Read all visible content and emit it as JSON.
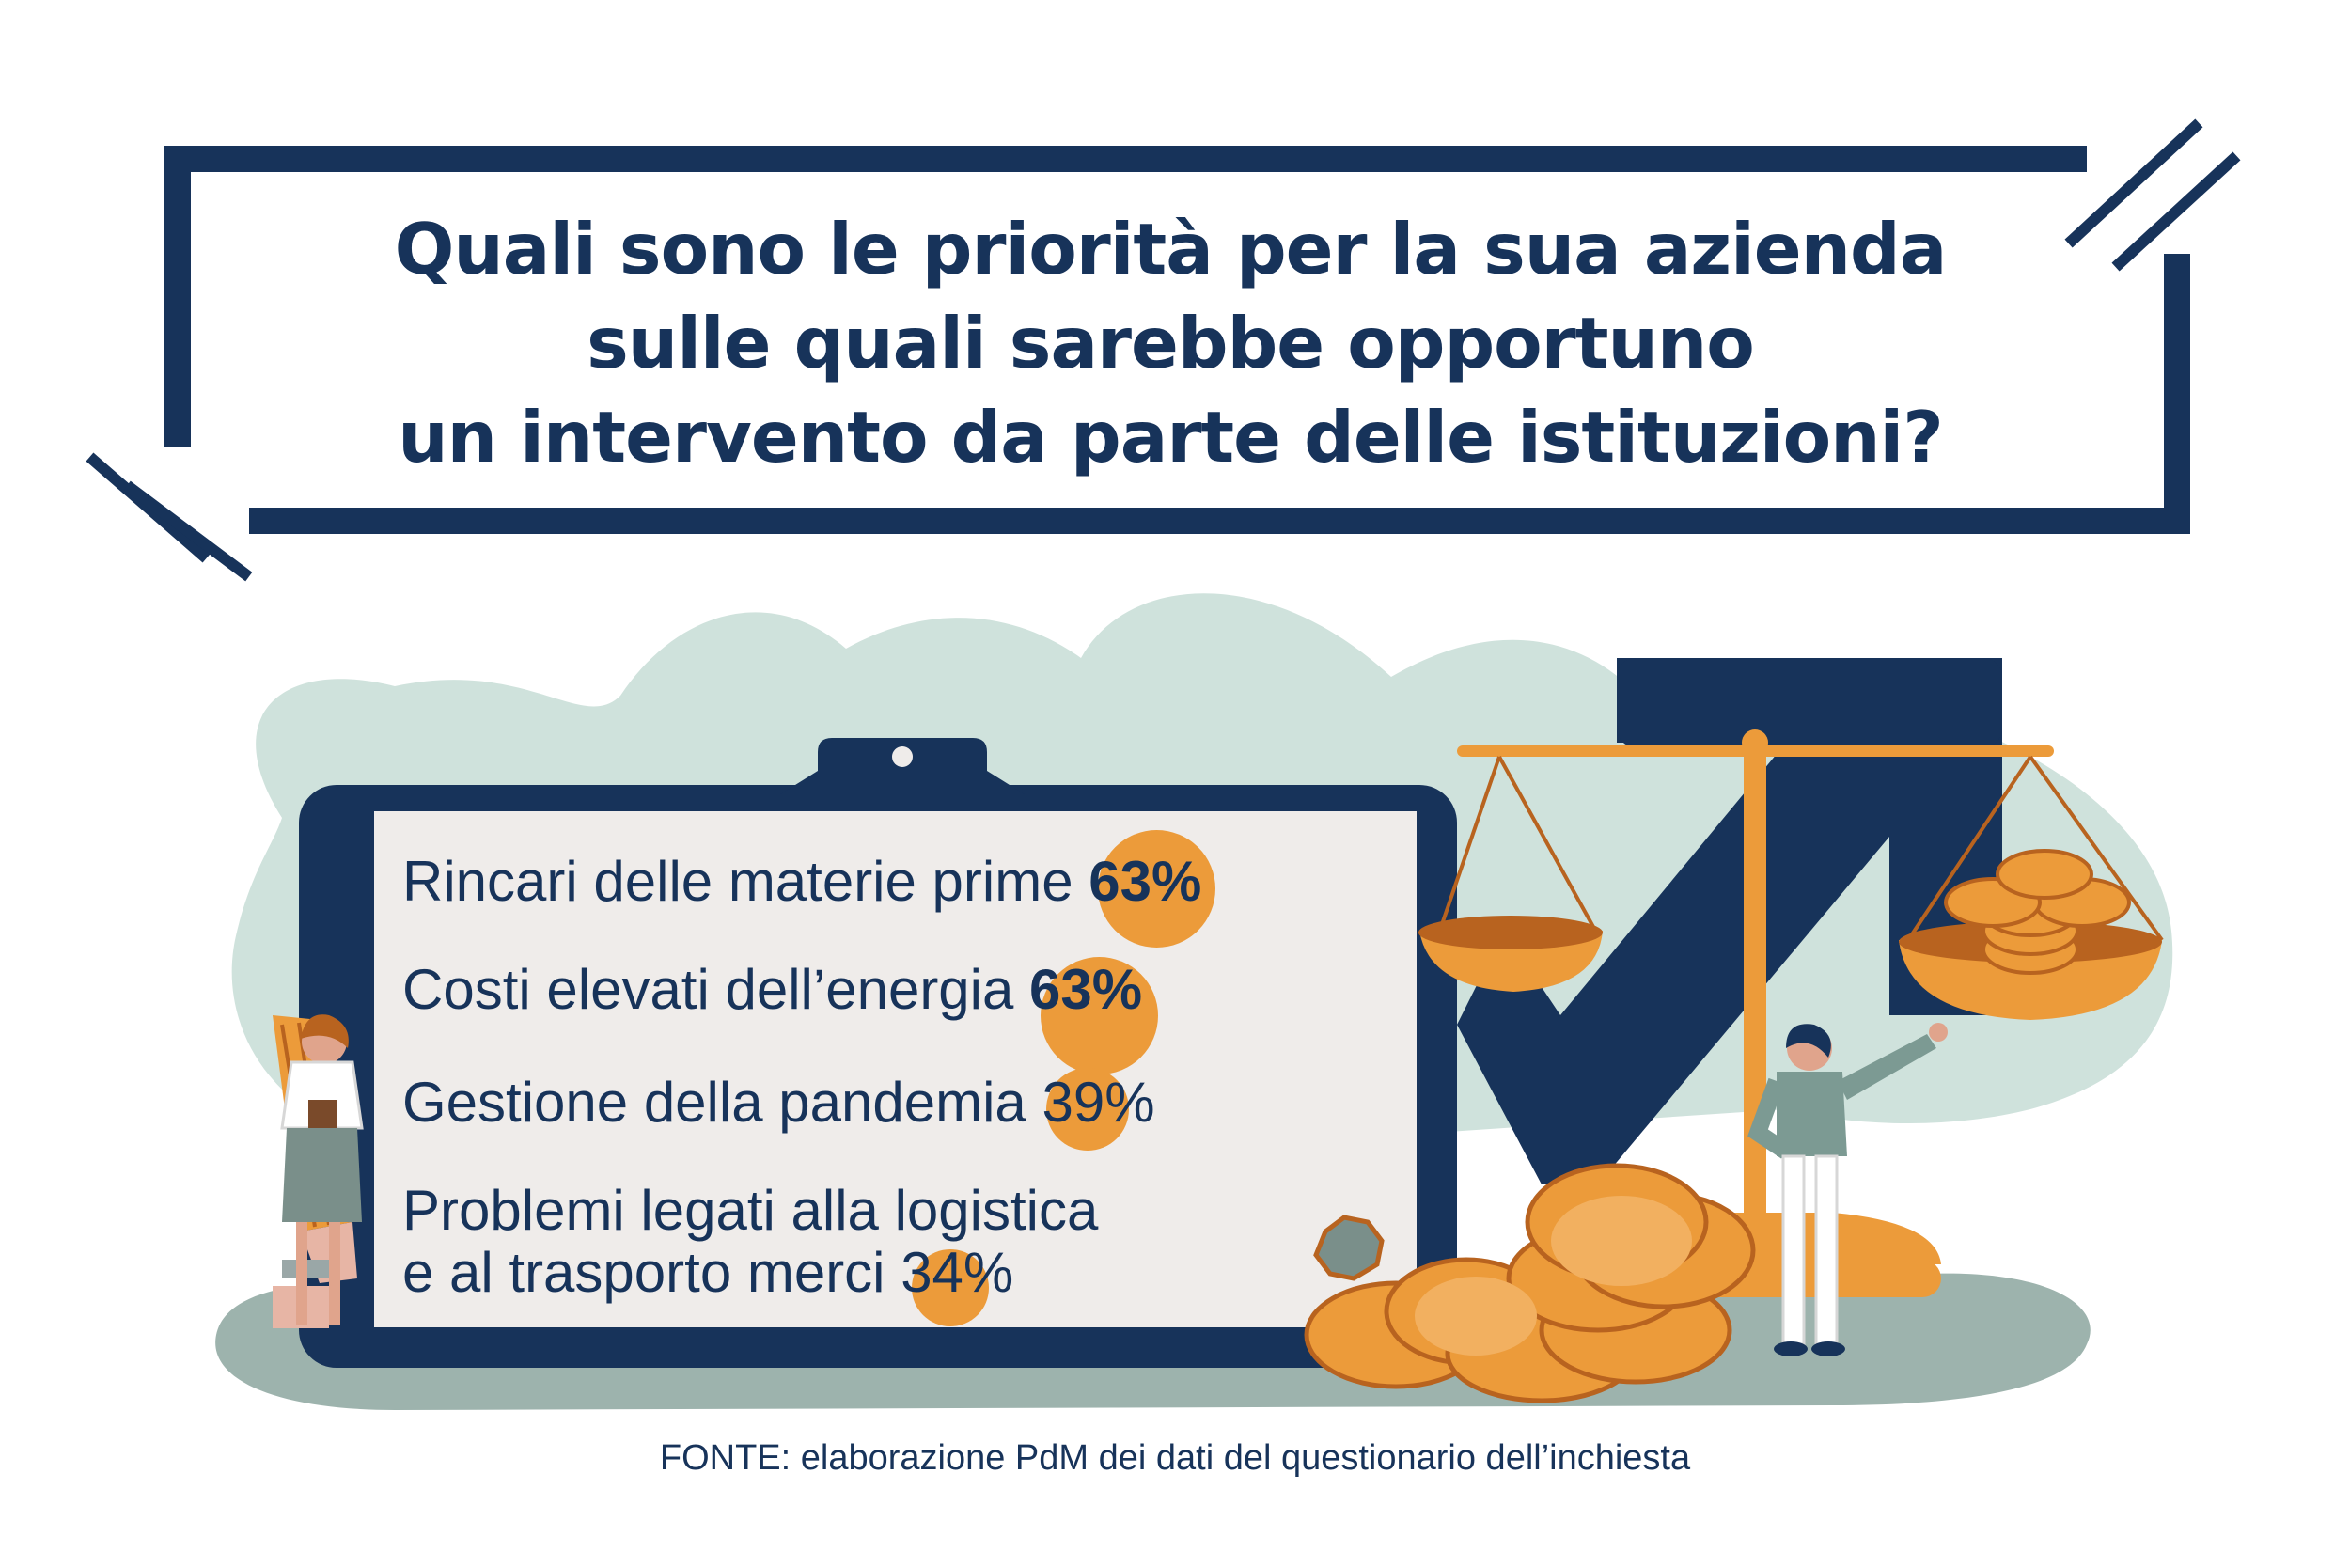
{
  "title": {
    "line1": "Quali sono le priorità per la sua azienda",
    "line2": "sulle quali sarebbe opportuno",
    "line3": "un intervento da parte delle istituzioni?"
  },
  "items": [
    {
      "label": "Rincari delle materie prime",
      "percent": "63%",
      "value": 63
    },
    {
      "label": "Costi elevati dell’energia",
      "percent": "63%",
      "value": 63
    },
    {
      "label": "Gestione della pandemia",
      "percent": "39%",
      "value": 39
    },
    {
      "label_line1": "Problemi legati alla logistica",
      "label_line2": "e al trasporto merci",
      "percent": "34%",
      "value": 34
    }
  ],
  "source": "FONTE: elaborazione PdM dei dati del questionario dell’inchiesta",
  "colors": {
    "navy": "#17335a",
    "orange": "#ec9b3a",
    "mint": "#cfe2dc",
    "paper": "#efecea",
    "ground": "#9db3ad"
  },
  "icons": [
    "clipboard-icon",
    "balance-scale-icon",
    "coin-stack-icon",
    "pencil-icon",
    "trend-arrow-icon"
  ]
}
